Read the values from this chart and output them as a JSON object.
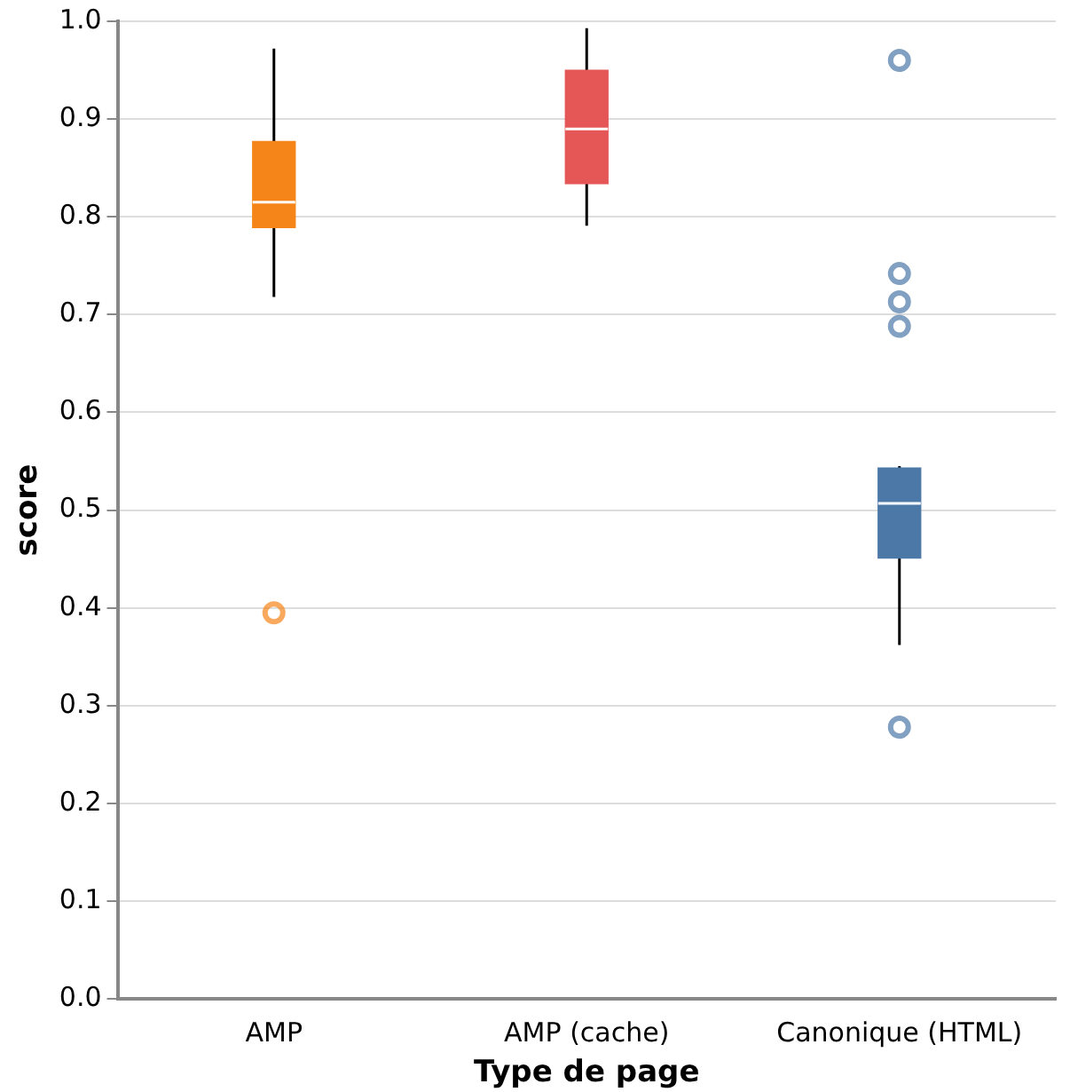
{
  "chart_data": {
    "type": "box",
    "xlabel": "Type de page",
    "ylabel": "score",
    "categories": [
      "AMP",
      "AMP (cache)",
      "Canonique (HTML)"
    ],
    "colors": [
      "#f58518",
      "#e45756",
      "#4c78a8"
    ],
    "boxes": [
      {
        "low": 0.718,
        "q1": 0.789,
        "median": 0.815,
        "q3": 0.877,
        "high": 0.972,
        "outliers": [
          0.395
        ]
      },
      {
        "low": 0.791,
        "q1": 0.834,
        "median": 0.89,
        "q3": 0.95,
        "high": 0.993
      },
      {
        "low": 0.362,
        "q1": 0.451,
        "median": 0.507,
        "q3": 0.543,
        "high": 0.545,
        "outliers": [
          0.96,
          0.742,
          0.713,
          0.688,
          0.278
        ]
      }
    ],
    "ylim": [
      0,
      1
    ],
    "yticks": [
      {
        "value": 0,
        "label": "0.0"
      },
      {
        "value": 0.1,
        "label": "0.1"
      },
      {
        "value": 0.2,
        "label": "0.2"
      },
      {
        "value": 0.3,
        "label": "0.3"
      },
      {
        "value": 0.4,
        "label": "0.4"
      },
      {
        "value": 0.5,
        "label": "0.5"
      },
      {
        "value": 0.6,
        "label": "0.6"
      },
      {
        "value": 0.7,
        "label": "0.7"
      },
      {
        "value": 0.8,
        "label": "0.8"
      },
      {
        "value": 0.9,
        "label": "0.9"
      },
      {
        "value": 1,
        "label": "1.0"
      }
    ],
    "grid": "y",
    "legend": false
  }
}
